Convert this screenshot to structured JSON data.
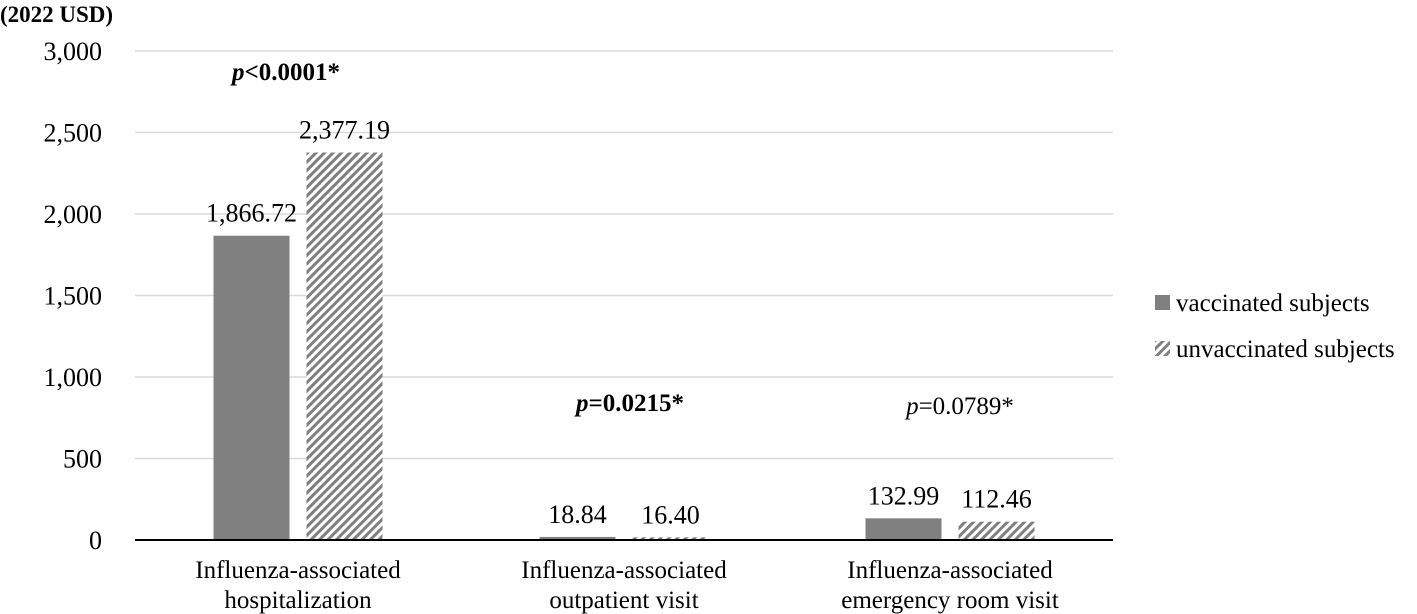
{
  "chart_data": {
    "type": "bar",
    "unit_label": "(2022 USD)",
    "categories": [
      [
        "Influenza-associated",
        "hospitalization"
      ],
      [
        "Influenza-associated",
        "outpatient visit"
      ],
      [
        "Influenza-associated",
        "emergency room visit"
      ]
    ],
    "series": [
      {
        "name": "vaccinated subjects",
        "values": [
          1866.72,
          18.84,
          132.99
        ],
        "labels": [
          "1,866.72",
          "18.84",
          "132.99"
        ],
        "color": "#808080",
        "pattern": "solid"
      },
      {
        "name": "unvaccinated subjects",
        "values": [
          2377.19,
          16.4,
          112.46
        ],
        "labels": [
          "2,377.19",
          "16.40",
          "112.46"
        ],
        "color": "#7f7f7f",
        "pattern": "diagonal-hatch"
      }
    ],
    "annotations": [
      {
        "prefix": "p",
        "text": "<0.0001*",
        "bold": true
      },
      {
        "prefix": "p",
        "text": "=0.0215*",
        "bold": true
      },
      {
        "prefix": "p",
        "text": "=0.0789*",
        "bold": false
      }
    ],
    "yticks": [
      "0",
      "500",
      "1,000",
      "1,500",
      "2,000",
      "2,500",
      "3,000"
    ],
    "ylim": [
      0,
      3000
    ],
    "grid": true,
    "legend_position": "right"
  }
}
